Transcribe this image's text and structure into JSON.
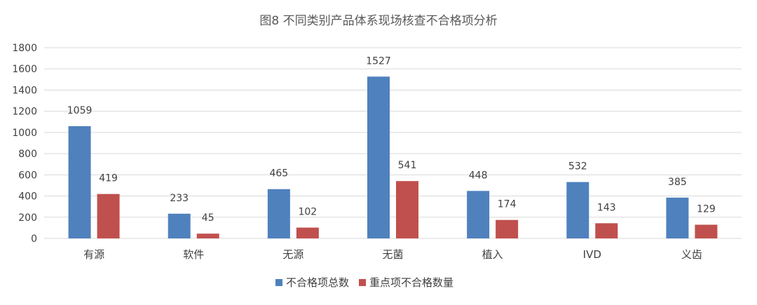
{
  "chart_data": {
    "type": "bar",
    "title": "图8 不同类别产品体系现场核查不合格项分析",
    "categories": [
      "有源",
      "软件",
      "无源",
      "无菌",
      "植入",
      "IVD",
      "义齿"
    ],
    "series": [
      {
        "name": "不合格项总数",
        "color": "#4f81bd",
        "values": [
          1059,
          233,
          465,
          1527,
          448,
          532,
          385
        ]
      },
      {
        "name": "重点项不合格数量",
        "color": "#c0504d",
        "values": [
          419,
          45,
          102,
          541,
          174,
          143,
          129
        ]
      }
    ],
    "ylim": [
      0,
      1800
    ],
    "yticks": [
      0,
      200,
      400,
      600,
      800,
      1000,
      1200,
      1400,
      1600,
      1800
    ],
    "grid": true,
    "legend": "bottom-center"
  }
}
